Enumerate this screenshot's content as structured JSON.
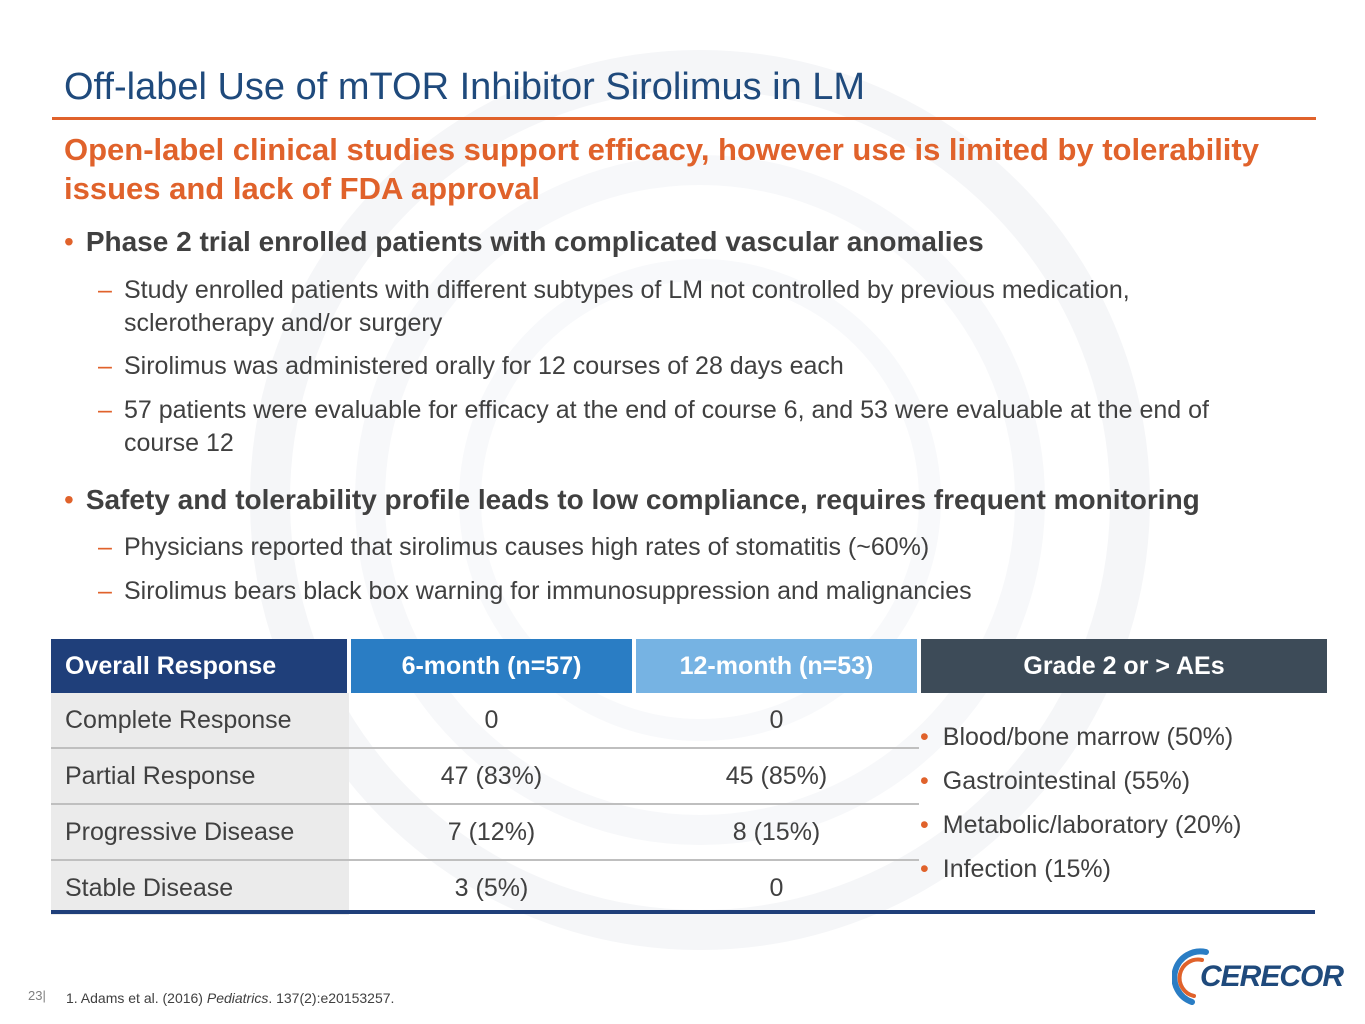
{
  "slide": {
    "title": "Off-label Use of mTOR Inhibitor Sirolimus in LM",
    "subtitle": "Open-label clinical studies support efficacy, however use is limited by tolerability issues and lack of FDA approval"
  },
  "bullets": [
    {
      "text": "Phase 2 trial enrolled patients with complicated vascular anomalies",
      "subs": [
        "Study enrolled patients with different subtypes of LM not controlled by previous medication, sclerotherapy and/or surgery",
        "Sirolimus was administered orally for 12 courses of 28 days each",
        "57 patients were evaluable for efficacy at the end of course 6, and 53 were evaluable at the end of course 12"
      ]
    },
    {
      "text": "Safety and tolerability profile leads to low compliance, requires frequent monitoring",
      "subs": [
        "Physicians reported that sirolimus causes high rates of stomatitis (~60%)",
        "Sirolimus bears black box warning for immunosuppression and malignancies"
      ]
    }
  ],
  "table": {
    "headers": [
      "Overall Response",
      "6-month (n=57)",
      "12-month (n=53)",
      "Grade 2 or > AEs"
    ],
    "rows": [
      [
        "Complete Response",
        "0",
        "0"
      ],
      [
        "Partial Response",
        "47 (83%)",
        "45 (85%)"
      ],
      [
        "Progressive Disease",
        "7 (12%)",
        "8 (15%)"
      ],
      [
        "Stable Disease",
        "3 (5%)",
        "0"
      ]
    ],
    "aes": [
      "Blood/bone marrow (50%)",
      "Gastrointestinal (55%)",
      "Metabolic/laboratory (20%)",
      "Infection (15%)"
    ]
  },
  "footer": {
    "page_number": "23|",
    "citation_prefix": "1. Adams et al. (2016) ",
    "citation_journal": "Pediatrics",
    "citation_suffix": ". 137(2):e20153257.",
    "logo_text": "CERECOR"
  },
  "colors": {
    "title_blue": "#1f4a7c",
    "accent_orange": "#e0622b",
    "header_navy": "#1f3f7a",
    "header_blue": "#2a7dc4",
    "header_light_blue": "#76b3e3",
    "header_slate": "#3d4b58"
  }
}
